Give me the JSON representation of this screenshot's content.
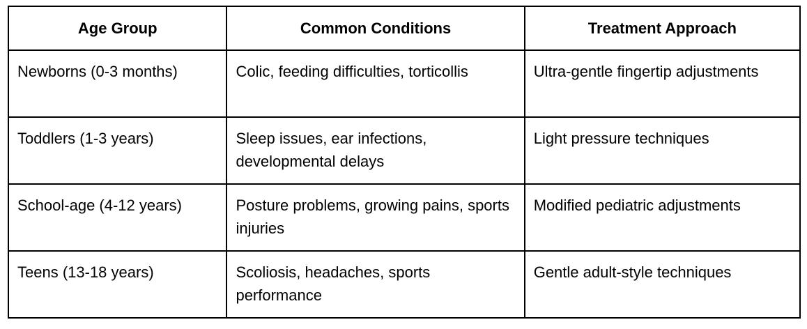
{
  "table": {
    "headers": [
      "Age Group",
      "Common Conditions",
      "Treatment Approach"
    ],
    "rows": [
      [
        "Newborns (0-3 months)",
        "Colic, feeding difficulties, torticollis",
        "Ultra-gentle fingertip adjustments"
      ],
      [
        "Toddlers (1-3 years)",
        "Sleep issues, ear infections, developmental delays",
        "Light pressure techniques"
      ],
      [
        "School-age (4-12 years)",
        "Posture problems, growing pains, sports injuries",
        "Modified pediatric adjustments"
      ],
      [
        "Teens (13-18 years)",
        "Scoliosis, headaches, sports performance",
        "Gentle adult-style techniques"
      ]
    ]
  }
}
